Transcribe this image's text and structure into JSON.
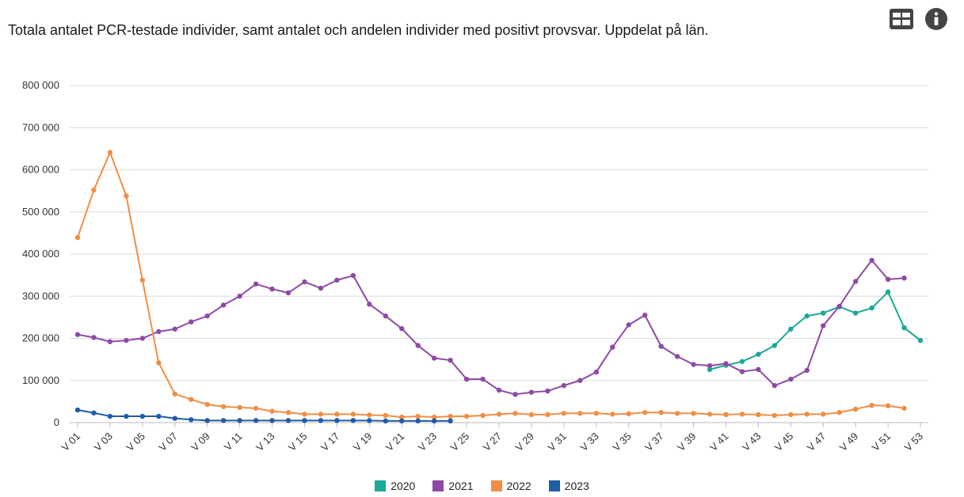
{
  "header": {
    "title": "Totala antalet PCR-testade individer, samt antalet och andelen individer med positivt provsvar. Uppdelat på län.",
    "table_icon": "table-view-icon",
    "info_icon": "info-icon"
  },
  "chart_data": {
    "type": "line",
    "title": "Totala antalet PCR-testade individer, samt antalet och andelen individer med positivt provsvar. Uppdelat på län.",
    "xlabel": "",
    "ylabel": "",
    "ylim": [
      0,
      800000
    ],
    "yticks": [
      0,
      100000,
      200000,
      300000,
      400000,
      500000,
      600000,
      700000,
      800000
    ],
    "ytick_labels": [
      "0",
      "100 000",
      "200 000",
      "300 000",
      "400 000",
      "500 000",
      "600 000",
      "700 000",
      "800 000"
    ],
    "grid": true,
    "legend_position": "bottom-center",
    "categories": [
      "V 01",
      "V 02",
      "V 03",
      "V 04",
      "V 05",
      "V 06",
      "V 07",
      "V 08",
      "V 09",
      "V 10",
      "V 11",
      "V 12",
      "V 13",
      "V 14",
      "V 15",
      "V 16",
      "V 17",
      "V 18",
      "V 19",
      "V 20",
      "V 21",
      "V 22",
      "V 23",
      "V 24",
      "V 25",
      "V 26",
      "V 27",
      "V 28",
      "V 29",
      "V 30",
      "V 31",
      "V 32",
      "V 33",
      "V 34",
      "V 35",
      "V 36",
      "V 37",
      "V 38",
      "V 39",
      "V 40",
      "V 41",
      "V 42",
      "V 43",
      "V 44",
      "V 45",
      "V 46",
      "V 47",
      "V 48",
      "V 49",
      "V 50",
      "V 51",
      "V 52",
      "V 53"
    ],
    "xtick_labels": [
      "V 01",
      "V 03",
      "V 05",
      "V 07",
      "V 09",
      "V 11",
      "V 13",
      "V 15",
      "V 17",
      "V 19",
      "V 21",
      "V 23",
      "V 25",
      "V 27",
      "V 29",
      "V 31",
      "V 33",
      "V 35",
      "V 37",
      "V 39",
      "V 41",
      "V 43",
      "V 45",
      "V 47",
      "V 49",
      "V 51",
      "V 53"
    ],
    "series": [
      {
        "name": "2020",
        "color": "#1ba896",
        "values": [
          null,
          null,
          null,
          null,
          null,
          null,
          null,
          null,
          null,
          null,
          null,
          null,
          null,
          null,
          null,
          null,
          null,
          null,
          null,
          null,
          null,
          null,
          null,
          null,
          null,
          null,
          null,
          null,
          null,
          null,
          null,
          null,
          null,
          null,
          null,
          null,
          null,
          null,
          null,
          126000,
          136000,
          145000,
          162000,
          183000,
          222000,
          253000,
          260000,
          275000,
          260000,
          272000,
          310000,
          225000,
          195000
        ]
      },
      {
        "name": "2021",
        "color": "#8e4aa5",
        "values": [
          209000,
          202000,
          192000,
          195000,
          200000,
          216000,
          222000,
          239000,
          253000,
          279000,
          300000,
          329000,
          317000,
          308000,
          334000,
          319000,
          338000,
          349000,
          281000,
          253000,
          223000,
          183000,
          153000,
          148000,
          103000,
          103000,
          77000,
          67000,
          72000,
          75000,
          88000,
          100000,
          120000,
          179000,
          232000,
          255000,
          181000,
          157000,
          138000,
          135000,
          140000,
          121000,
          126000,
          88000,
          103000,
          124000,
          230000,
          276000,
          335000,
          385000,
          340000,
          343000,
          null
        ]
      },
      {
        "name": "2022",
        "color": "#f08e44",
        "values": [
          439000,
          552000,
          641000,
          538000,
          338000,
          142000,
          68000,
          55000,
          43000,
          38000,
          36000,
          34000,
          27000,
          24000,
          20000,
          20000,
          20000,
          20000,
          18000,
          17000,
          13000,
          15000,
          13000,
          15000,
          15000,
          17000,
          20000,
          22000,
          19000,
          19000,
          22000,
          22000,
          22000,
          20000,
          21000,
          24000,
          24000,
          22000,
          22000,
          20000,
          19000,
          20000,
          19000,
          17000,
          19000,
          20000,
          20000,
          24000,
          32000,
          41000,
          40000,
          34000,
          null
        ]
      },
      {
        "name": "2023",
        "color": "#1f5da6",
        "values": [
          30000,
          23000,
          15000,
          15000,
          15000,
          15000,
          10000,
          7000,
          5000,
          5000,
          5000,
          5000,
          5000,
          5000,
          5000,
          5000,
          5000,
          5000,
          5000,
          4000,
          4000,
          4000,
          4000,
          4000,
          null,
          null,
          null,
          null,
          null,
          null,
          null,
          null,
          null,
          null,
          null,
          null,
          null,
          null,
          null,
          null,
          null,
          null,
          null,
          null,
          null,
          null,
          null,
          null,
          null,
          null,
          null,
          null,
          null
        ]
      }
    ]
  }
}
